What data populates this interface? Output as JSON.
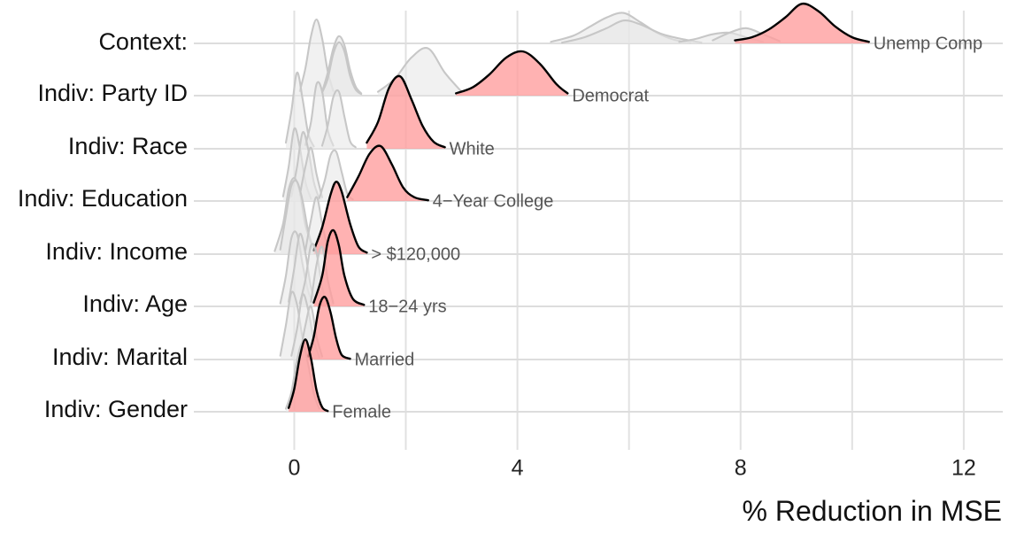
{
  "chart_data": {
    "type": "ridgeline",
    "title": "",
    "xlabel": "% Reduction in MSE",
    "xlim": [
      -1.8,
      12.7
    ],
    "xticks": [
      0,
      4,
      8,
      12
    ],
    "xtick_labels": [
      "0",
      "4",
      "8",
      "12"
    ],
    "grid": true,
    "colors": {
      "background": "#ffffff",
      "grid": "#e1e1e1",
      "other_fill": "#e7e7e7",
      "other_line": "#c7c7c7",
      "highlight_fill": "#ff9c9c",
      "highlight_line": "#000000"
    },
    "rows": [
      {
        "label": "Context:",
        "highlight_label": "Unemp Comp",
        "highlight": {
          "x": [
            7.9,
            8.2,
            8.5,
            8.8,
            9.1,
            9.4,
            9.7,
            10.0,
            10.3
          ],
          "y": [
            0.04,
            0.08,
            0.18,
            0.34,
            0.52,
            0.42,
            0.22,
            0.08,
            0.02
          ]
        },
        "others": [
          {
            "x": [
              4.6,
              5.0,
              5.3,
              5.6,
              5.9,
              6.2,
              6.5,
              6.8,
              7.1
            ],
            "y": [
              0.02,
              0.1,
              0.22,
              0.34,
              0.4,
              0.28,
              0.14,
              0.05,
              0.01
            ]
          },
          {
            "x": [
              4.8,
              5.2,
              5.6,
              5.9,
              6.2,
              6.6,
              7.0,
              7.3
            ],
            "y": [
              0.01,
              0.08,
              0.2,
              0.3,
              0.25,
              0.12,
              0.05,
              0.01
            ]
          },
          {
            "x": [
              6.9,
              7.2,
              7.5,
              7.8,
              8.1,
              8.4
            ],
            "y": [
              0.02,
              0.06,
              0.12,
              0.14,
              0.08,
              0.02
            ]
          },
          {
            "x": [
              7.5,
              7.8,
              8.1,
              8.4,
              8.7
            ],
            "y": [
              0.04,
              0.14,
              0.2,
              0.12,
              0.03
            ]
          }
        ]
      },
      {
        "label": "Indiv: Party ID",
        "highlight_label": "Democrat",
        "highlight": {
          "x": [
            2.9,
            3.2,
            3.5,
            3.8,
            4.1,
            4.4,
            4.7,
            4.9
          ],
          "y": [
            0.03,
            0.11,
            0.28,
            0.5,
            0.58,
            0.42,
            0.15,
            0.03
          ]
        },
        "others": [
          {
            "x": [
              0.1,
              0.2,
              0.3,
              0.4,
              0.5,
              0.6,
              0.7
            ],
            "y": [
              0.06,
              0.36,
              0.78,
              1.0,
              0.75,
              0.32,
              0.06
            ]
          },
          {
            "x": [
              0.5,
              0.6,
              0.7,
              0.8,
              0.9,
              1.0,
              1.1,
              1.2
            ],
            "y": [
              0.05,
              0.3,
              0.62,
              0.78,
              0.66,
              0.34,
              0.12,
              0.03
            ]
          },
          {
            "x": [
              0.5,
              0.6,
              0.7,
              0.8,
              0.9,
              1.0,
              1.1,
              1.2
            ],
            "y": [
              0.04,
              0.22,
              0.55,
              0.7,
              0.58,
              0.26,
              0.08,
              0.02
            ]
          },
          {
            "x": [
              1.5,
              1.8,
              2.1,
              2.4,
              2.7,
              3.0
            ],
            "y": [
              0.05,
              0.22,
              0.5,
              0.62,
              0.3,
              0.05
            ]
          }
        ]
      },
      {
        "label": "Indiv: Race",
        "highlight_label": "White",
        "highlight": {
          "x": [
            1.3,
            1.5,
            1.7,
            1.9,
            2.1,
            2.3,
            2.5,
            2.7
          ],
          "y": [
            0.08,
            0.35,
            0.8,
            0.95,
            0.65,
            0.3,
            0.09,
            0.02
          ]
        },
        "others": [
          {
            "x": [
              -0.15,
              -0.05,
              0.05,
              0.15,
              0.25,
              0.35
            ],
            "y": [
              0.08,
              0.5,
              1.0,
              0.65,
              0.2,
              0.03
            ]
          },
          {
            "x": [
              0.2,
              0.3,
              0.4,
              0.5,
              0.6,
              0.7
            ],
            "y": [
              0.05,
              0.35,
              0.85,
              0.75,
              0.25,
              0.04
            ]
          },
          {
            "x": [
              0.5,
              0.6,
              0.7,
              0.8,
              0.9,
              1.0,
              1.1
            ],
            "y": [
              0.04,
              0.3,
              0.68,
              0.75,
              0.42,
              0.1,
              0.02
            ]
          }
        ]
      },
      {
        "label": "Indiv: Education",
        "highlight_label": "4−Year College",
        "highlight": {
          "x": [
            0.95,
            1.15,
            1.35,
            1.55,
            1.75,
            1.95,
            2.15,
            2.4
          ],
          "y": [
            0.05,
            0.32,
            0.62,
            0.72,
            0.48,
            0.18,
            0.05,
            0.01
          ]
        },
        "others": [
          {
            "x": [
              -0.2,
              -0.1,
              0.0,
              0.1,
              0.2,
              0.3
            ],
            "y": [
              0.06,
              0.45,
              0.95,
              0.7,
              0.25,
              0.03
            ]
          },
          {
            "x": [
              -0.05,
              0.05,
              0.15,
              0.25,
              0.35,
              0.45
            ],
            "y": [
              0.06,
              0.45,
              0.9,
              0.68,
              0.25,
              0.03
            ]
          },
          {
            "x": [
              0.1,
              0.2,
              0.3,
              0.4,
              0.5
            ],
            "y": [
              0.08,
              0.45,
              0.7,
              0.35,
              0.05
            ]
          },
          {
            "x": [
              0.45,
              0.55,
              0.65,
              0.75,
              0.85,
              0.95,
              1.05
            ],
            "y": [
              0.04,
              0.28,
              0.6,
              0.65,
              0.38,
              0.1,
              0.02
            ]
          }
        ]
      },
      {
        "label": "Indiv: Income",
        "highlight_label": "> $120,000",
        "highlight": {
          "x": [
            0.35,
            0.5,
            0.65,
            0.75,
            0.85,
            1.0,
            1.15,
            1.3
          ],
          "y": [
            0.05,
            0.35,
            0.78,
            0.95,
            0.82,
            0.4,
            0.1,
            0.02
          ]
        },
        "others": [
          {
            "x": [
              -0.35,
              -0.2,
              -0.1,
              0.0,
              0.1,
              0.2,
              0.35
            ],
            "y": [
              0.04,
              0.4,
              0.85,
              1.0,
              0.82,
              0.38,
              0.04
            ]
          },
          {
            "x": [
              -0.25,
              -0.15,
              -0.05,
              0.05,
              0.15,
              0.25,
              0.35
            ],
            "y": [
              0.06,
              0.5,
              0.9,
              0.95,
              0.7,
              0.3,
              0.04
            ]
          },
          {
            "x": [
              0.2,
              0.3,
              0.4,
              0.5,
              0.6
            ],
            "y": [
              0.05,
              0.45,
              0.75,
              0.4,
              0.06
            ]
          }
        ]
      },
      {
        "label": "Indiv: Age",
        "highlight_label": "18−24 yrs",
        "highlight": {
          "x": [
            0.35,
            0.5,
            0.6,
            0.7,
            0.8,
            0.9,
            1.05,
            1.25
          ],
          "y": [
            0.05,
            0.4,
            0.85,
            1.0,
            0.8,
            0.4,
            0.1,
            0.02
          ]
        },
        "others": [
          {
            "x": [
              -0.25,
              -0.15,
              -0.05,
              0.05,
              0.15,
              0.25,
              0.35
            ],
            "y": [
              0.04,
              0.4,
              0.9,
              0.95,
              0.55,
              0.2,
              0.03
            ]
          },
          {
            "x": [
              -0.1,
              0.0,
              0.1,
              0.2,
              0.3,
              0.4
            ],
            "y": [
              0.06,
              0.5,
              0.95,
              0.7,
              0.25,
              0.03
            ]
          },
          {
            "x": [
              0.1,
              0.2,
              0.3,
              0.4,
              0.5,
              0.6
            ],
            "y": [
              0.04,
              0.35,
              0.8,
              0.7,
              0.25,
              0.03
            ]
          },
          {
            "x": [
              0.3,
              0.4,
              0.5,
              0.6,
              0.7
            ],
            "y": [
              0.06,
              0.55,
              0.78,
              0.35,
              0.04
            ]
          }
        ]
      },
      {
        "label": "Indiv: Marital",
        "highlight_label": "Married",
        "highlight": {
          "x": [
            0.25,
            0.35,
            0.45,
            0.55,
            0.65,
            0.75,
            0.85,
            1.0
          ],
          "y": [
            0.04,
            0.3,
            0.7,
            0.82,
            0.62,
            0.28,
            0.06,
            0.01
          ]
        },
        "others": [
          {
            "x": [
              -0.25,
              -0.15,
              -0.05,
              0.05,
              0.15,
              0.25
            ],
            "y": [
              0.05,
              0.45,
              0.88,
              0.72,
              0.28,
              0.03
            ]
          },
          {
            "x": [
              -0.05,
              0.05,
              0.15,
              0.25,
              0.35,
              0.45
            ],
            "y": [
              0.05,
              0.4,
              0.85,
              0.65,
              0.25,
              0.03
            ]
          },
          {
            "x": [
              0.1,
              0.2,
              0.3,
              0.4,
              0.5
            ],
            "y": [
              0.05,
              0.45,
              0.7,
              0.3,
              0.04
            ]
          }
        ]
      },
      {
        "label": "Indiv: Gender",
        "highlight_label": "Female",
        "highlight": {
          "x": [
            -0.1,
            0.0,
            0.1,
            0.2,
            0.3,
            0.4,
            0.5,
            0.6
          ],
          "y": [
            0.05,
            0.3,
            0.72,
            0.95,
            0.7,
            0.28,
            0.06,
            0.01
          ]
        },
        "others": [
          {
            "x": [
              -0.15,
              -0.05,
              0.05,
              0.15,
              0.25,
              0.35,
              0.45
            ],
            "y": [
              0.04,
              0.26,
              0.68,
              0.9,
              0.62,
              0.24,
              0.04
            ]
          }
        ]
      }
    ]
  }
}
